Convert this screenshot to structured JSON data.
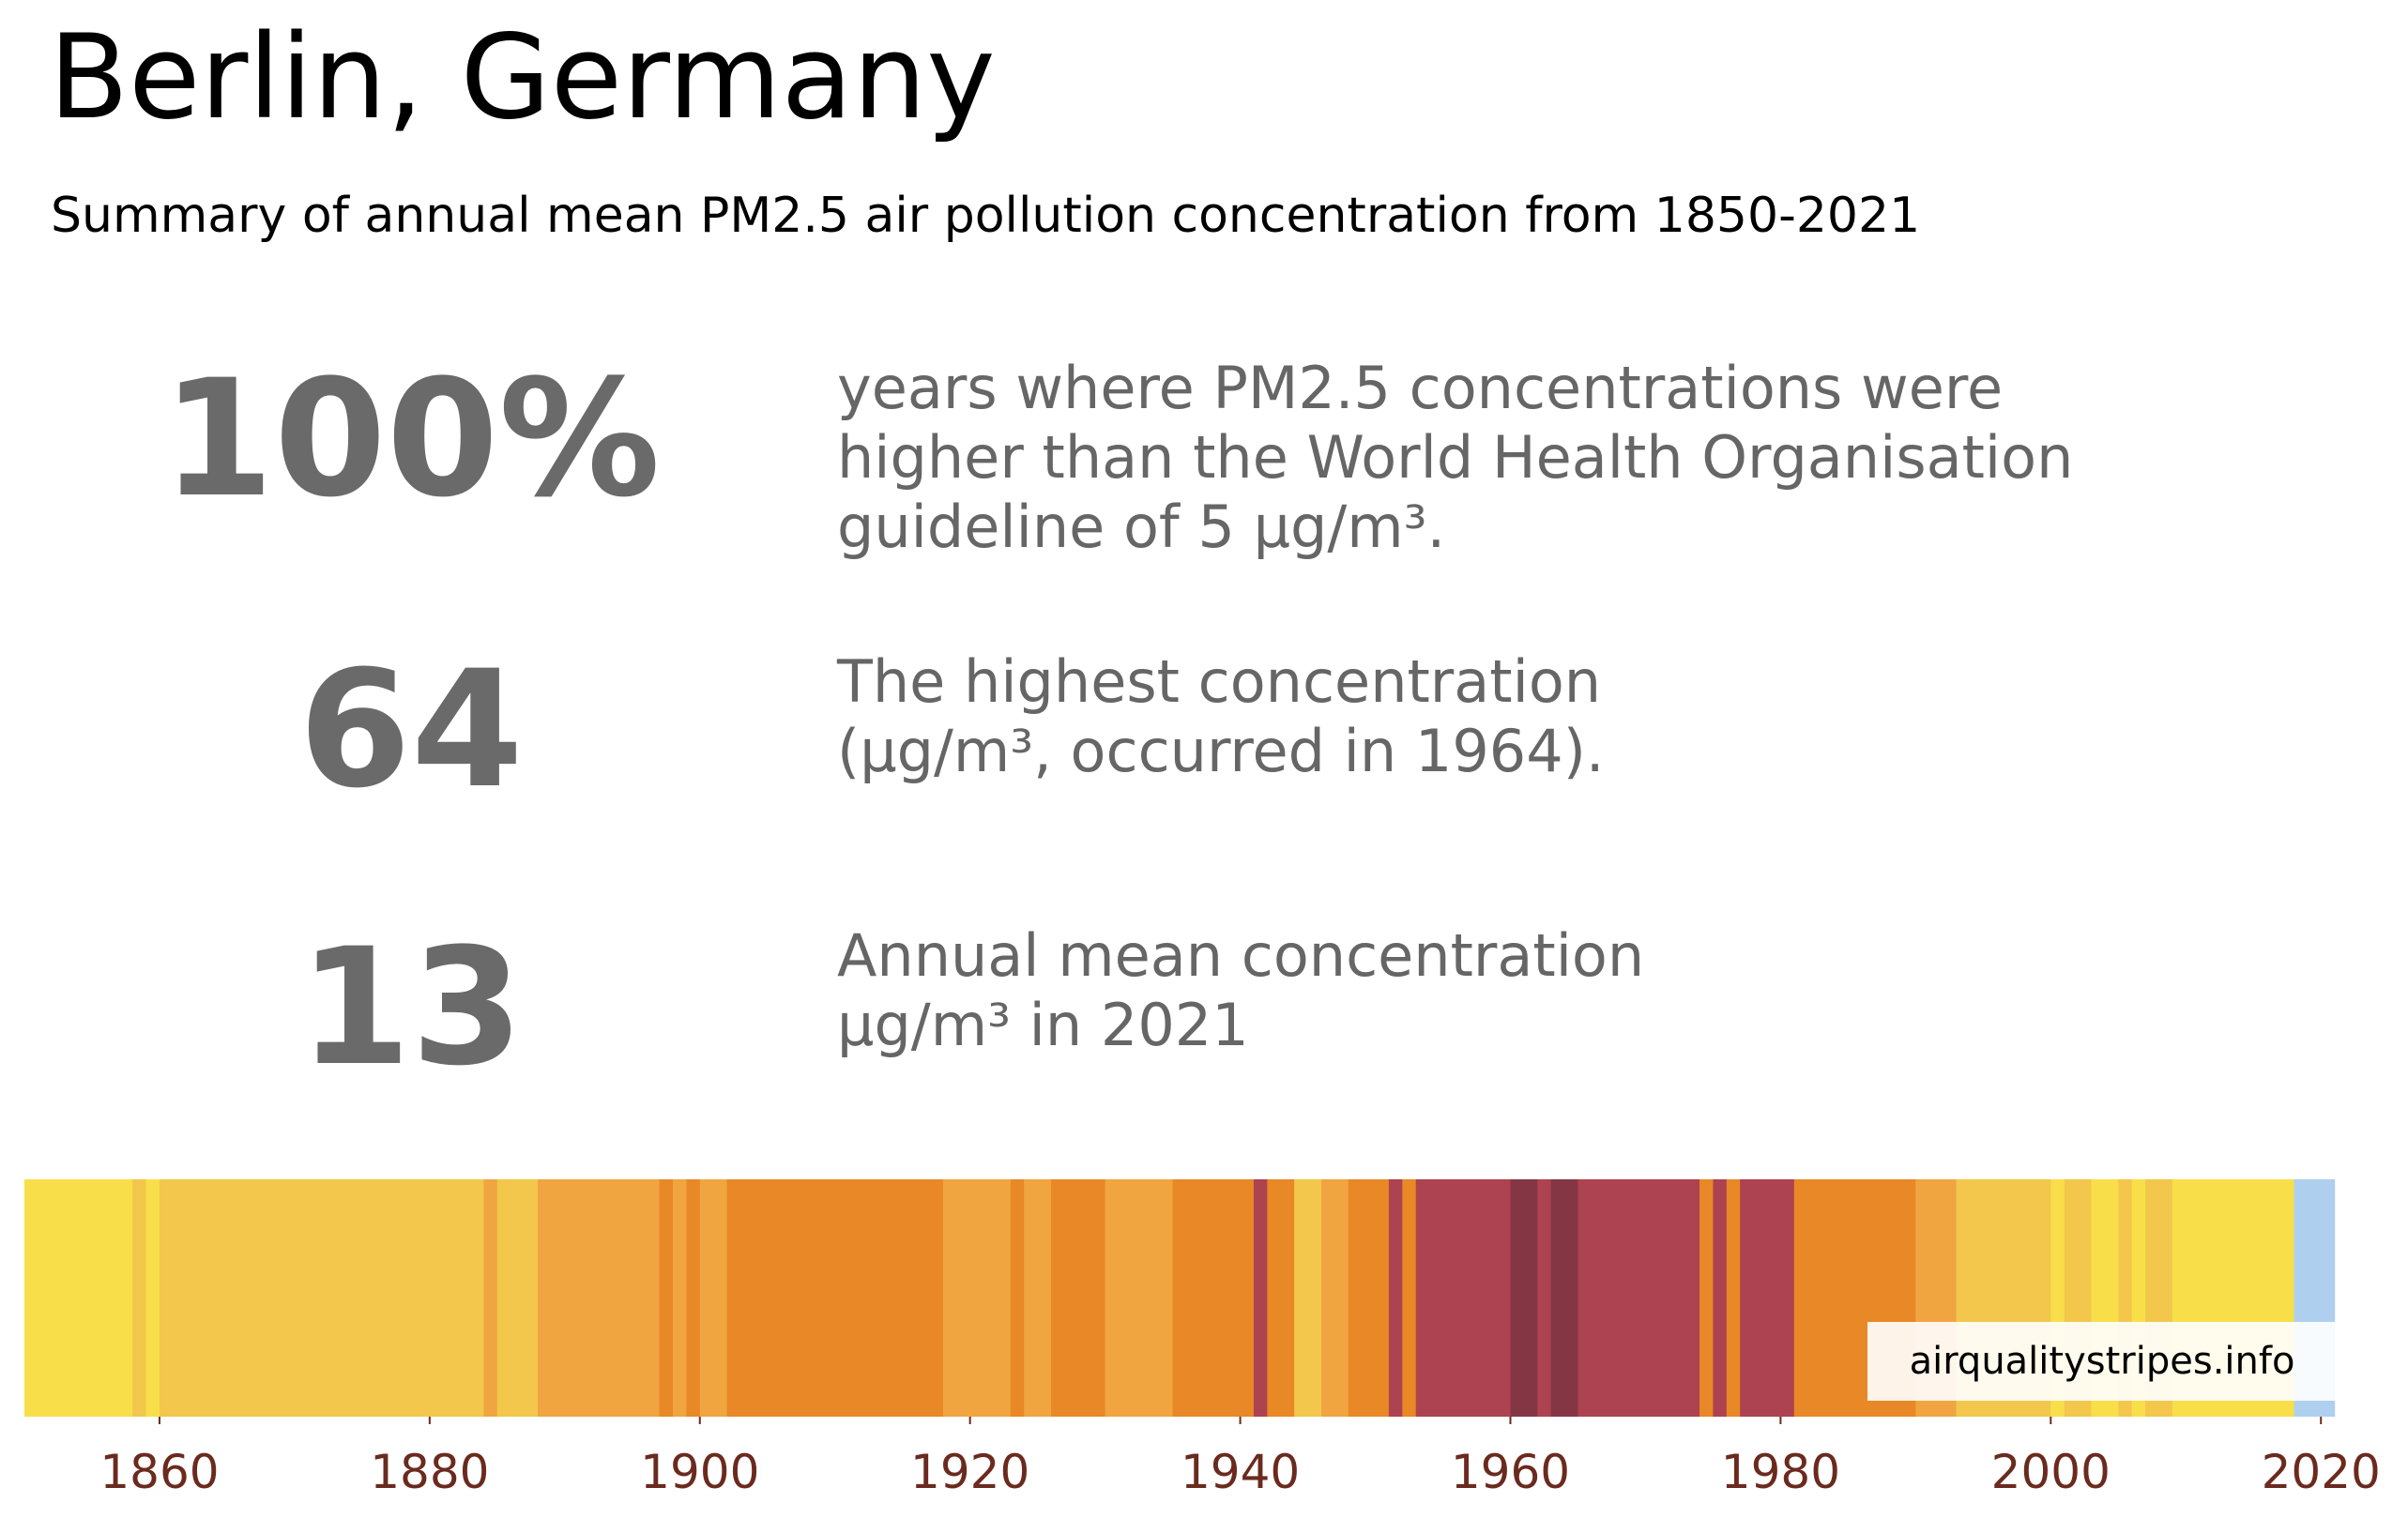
{
  "header": {
    "title": "Berlin, Germany",
    "subtitle": "Summary of annual mean PM2.5 air pollution concentration from 1850-2021"
  },
  "stats": [
    {
      "value": "100%",
      "lines": [
        "years where PM2.5 concentrations were",
        "higher than the World Health Organisation",
        "guideline of 5 µg/m³."
      ]
    },
    {
      "value": "64",
      "lines": [
        "The highest concentration",
        "(µg/m³, occurred in 1964)."
      ]
    },
    {
      "value": "13",
      "lines": [
        "Annual mean concentration",
        "µg/m³ in 2021"
      ]
    }
  ],
  "watermark": "airqualitystripes.info",
  "colors": {
    "very_low": "#afcfee",
    "low": "#f8df4a",
    "moderate": "#f2c74c",
    "elevated": "#f0a541",
    "high": "#e88826",
    "very_high": "#ad4250",
    "extreme": "#843644",
    "tick_label": "#6b2a1e",
    "stat_text": "#666666"
  },
  "chart_data": {
    "type": "heatmap",
    "title": "",
    "xlabel": "",
    "ylabel": "",
    "xlim": [
      1850,
      2022
    ],
    "x_ticks": [
      1860,
      1880,
      1900,
      1920,
      1940,
      1960,
      1980,
      2000,
      2020
    ],
    "levels": [
      "very_low",
      "low",
      "moderate",
      "elevated",
      "high",
      "very_high",
      "extreme"
    ],
    "segments": [
      {
        "start": 1850,
        "end": 1858,
        "level": "low"
      },
      {
        "start": 1858,
        "end": 1859,
        "level": "moderate"
      },
      {
        "start": 1859,
        "end": 1860,
        "level": "low"
      },
      {
        "start": 1860,
        "end": 1884,
        "level": "moderate"
      },
      {
        "start": 1884,
        "end": 1885,
        "level": "elevated"
      },
      {
        "start": 1885,
        "end": 1888,
        "level": "moderate"
      },
      {
        "start": 1888,
        "end": 1897,
        "level": "elevated"
      },
      {
        "start": 1897,
        "end": 1898,
        "level": "high"
      },
      {
        "start": 1898,
        "end": 1899,
        "level": "elevated"
      },
      {
        "start": 1899,
        "end": 1900,
        "level": "high"
      },
      {
        "start": 1900,
        "end": 1902,
        "level": "elevated"
      },
      {
        "start": 1902,
        "end": 1918,
        "level": "high"
      },
      {
        "start": 1918,
        "end": 1923,
        "level": "elevated"
      },
      {
        "start": 1923,
        "end": 1924,
        "level": "high"
      },
      {
        "start": 1924,
        "end": 1926,
        "level": "elevated"
      },
      {
        "start": 1926,
        "end": 1930,
        "level": "high"
      },
      {
        "start": 1930,
        "end": 1935,
        "level": "elevated"
      },
      {
        "start": 1935,
        "end": 1941,
        "level": "high"
      },
      {
        "start": 1941,
        "end": 1942,
        "level": "very_high"
      },
      {
        "start": 1942,
        "end": 1944,
        "level": "high"
      },
      {
        "start": 1944,
        "end": 1946,
        "level": "moderate"
      },
      {
        "start": 1946,
        "end": 1948,
        "level": "elevated"
      },
      {
        "start": 1948,
        "end": 1951,
        "level": "high"
      },
      {
        "start": 1951,
        "end": 1952,
        "level": "very_high"
      },
      {
        "start": 1952,
        "end": 1953,
        "level": "high"
      },
      {
        "start": 1953,
        "end": 1960,
        "level": "very_high"
      },
      {
        "start": 1960,
        "end": 1962,
        "level": "extreme"
      },
      {
        "start": 1962,
        "end": 1963,
        "level": "very_high"
      },
      {
        "start": 1963,
        "end": 1965,
        "level": "extreme"
      },
      {
        "start": 1965,
        "end": 1974,
        "level": "very_high"
      },
      {
        "start": 1974,
        "end": 1975,
        "level": "high"
      },
      {
        "start": 1975,
        "end": 1976,
        "level": "very_high"
      },
      {
        "start": 1976,
        "end": 1977,
        "level": "high"
      },
      {
        "start": 1977,
        "end": 1981,
        "level": "very_high"
      },
      {
        "start": 1981,
        "end": 1990,
        "level": "high"
      },
      {
        "start": 1990,
        "end": 1993,
        "level": "elevated"
      },
      {
        "start": 1993,
        "end": 2000,
        "level": "moderate"
      },
      {
        "start": 2000,
        "end": 2001,
        "level": "low"
      },
      {
        "start": 2001,
        "end": 2003,
        "level": "moderate"
      },
      {
        "start": 2003,
        "end": 2005,
        "level": "low"
      },
      {
        "start": 2005,
        "end": 2006,
        "level": "moderate"
      },
      {
        "start": 2006,
        "end": 2007,
        "level": "low"
      },
      {
        "start": 2007,
        "end": 2009,
        "level": "moderate"
      },
      {
        "start": 2009,
        "end": 2018,
        "level": "low"
      },
      {
        "start": 2018,
        "end": 2021,
        "level": "very_low"
      }
    ]
  }
}
